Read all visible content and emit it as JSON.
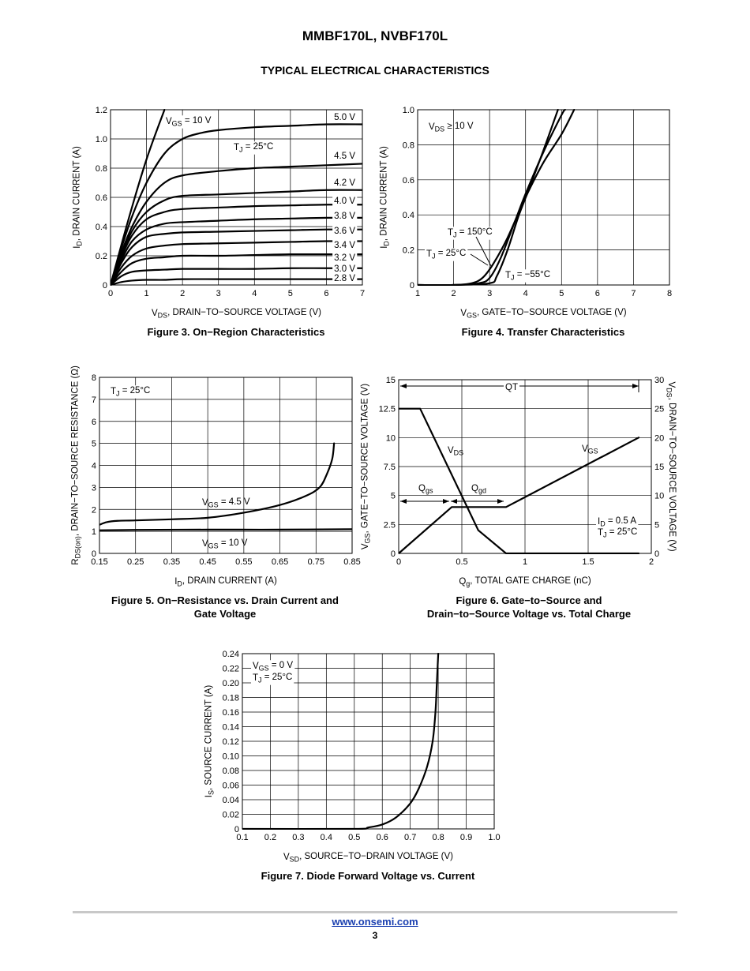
{
  "header": {
    "doc_title": "MMBF170L, NVBF170L",
    "section_title": "TYPICAL ELECTRICAL CHARACTERISTICS"
  },
  "footer": {
    "link": "www.onsemi.com",
    "page": "3"
  },
  "chart_data": [
    {
      "id": "fig3",
      "type": "line",
      "caption": "Figure 3. On−Region Characteristics",
      "xlabel": [
        "V",
        "DS",
        ", DRAIN−TO−SOURCE VOLTAGE (V)"
      ],
      "ylabel": [
        "I",
        "D",
        ", DRAIN CURRENT (A)"
      ],
      "xlim": [
        0,
        7
      ],
      "ylim": [
        0,
        1.2
      ],
      "xticks": [
        "0",
        "1",
        "2",
        "3",
        "4",
        "5",
        "6",
        "7"
      ],
      "yticks": [
        "0",
        "0.2",
        "0.4",
        "0.6",
        "0.8",
        "1.0",
        "1.2"
      ],
      "grid": true,
      "annotations": [
        [
          "V",
          "GS",
          " = 10 V"
        ],
        [
          "T",
          "J",
          " = 25°C"
        ]
      ],
      "series": [
        {
          "name": "10 V",
          "x": [
            0,
            0.5,
            1,
            1.5
          ],
          "y": [
            0,
            0.45,
            0.86,
            1.2
          ]
        },
        {
          "name": "5.0 V",
          "x": [
            0,
            0.3,
            0.6,
            1,
            1.5,
            2,
            2.5,
            3,
            4,
            5,
            6,
            7
          ],
          "y": [
            0,
            0.25,
            0.47,
            0.7,
            0.9,
            1.0,
            1.04,
            1.06,
            1.08,
            1.09,
            1.1,
            1.1
          ]
        },
        {
          "name": "4.5 V",
          "x": [
            0,
            0.3,
            0.6,
            1,
            1.5,
            2,
            3,
            4,
            5,
            6,
            7
          ],
          "y": [
            0,
            0.22,
            0.4,
            0.57,
            0.7,
            0.75,
            0.78,
            0.8,
            0.81,
            0.82,
            0.83
          ]
        },
        {
          "name": "4.2 V",
          "x": [
            0,
            0.3,
            0.6,
            1,
            1.5,
            2,
            3,
            4,
            5,
            6,
            7
          ],
          "y": [
            0,
            0.2,
            0.37,
            0.5,
            0.58,
            0.61,
            0.62,
            0.63,
            0.64,
            0.65,
            0.65
          ]
        },
        {
          "name": "4.0 V",
          "x": [
            0,
            0.3,
            0.6,
            1,
            1.5,
            2,
            3,
            4,
            5,
            6,
            7
          ],
          "y": [
            0,
            0.19,
            0.34,
            0.45,
            0.5,
            0.52,
            0.53,
            0.54,
            0.545,
            0.55,
            0.55
          ]
        },
        {
          "name": "3.8 V",
          "x": [
            0,
            0.3,
            0.6,
            1,
            1.5,
            2,
            3,
            4,
            5,
            6,
            7
          ],
          "y": [
            0,
            0.17,
            0.3,
            0.38,
            0.42,
            0.43,
            0.44,
            0.45,
            0.455,
            0.46,
            0.46
          ]
        },
        {
          "name": "3.6 V",
          "x": [
            0,
            0.3,
            0.6,
            1,
            1.5,
            2,
            3,
            4,
            5,
            6,
            7
          ],
          "y": [
            0,
            0.15,
            0.26,
            0.33,
            0.35,
            0.36,
            0.365,
            0.37,
            0.375,
            0.38,
            0.38
          ]
        },
        {
          "name": "3.4 V",
          "x": [
            0,
            0.3,
            0.6,
            1,
            1.5,
            2,
            3,
            4,
            5,
            6,
            7
          ],
          "y": [
            0,
            0.12,
            0.2,
            0.25,
            0.27,
            0.28,
            0.285,
            0.29,
            0.295,
            0.3,
            0.3
          ]
        },
        {
          "name": "3.2 V",
          "x": [
            0,
            0.3,
            0.6,
            1,
            1.5,
            2,
            3,
            4,
            5,
            6,
            7
          ],
          "y": [
            0,
            0.09,
            0.15,
            0.18,
            0.19,
            0.2,
            0.2,
            0.205,
            0.21,
            0.21,
            0.21
          ]
        },
        {
          "name": "3.0 V",
          "x": [
            0,
            0.3,
            0.6,
            1,
            1.5,
            2,
            3,
            4,
            5,
            6,
            7
          ],
          "y": [
            0,
            0.06,
            0.09,
            0.1,
            0.105,
            0.11,
            0.11,
            0.11,
            0.115,
            0.115,
            0.115
          ]
        },
        {
          "name": "2.8 V",
          "x": [
            0,
            0.3,
            0.6,
            1,
            1.5,
            2,
            3,
            4,
            5,
            6,
            7
          ],
          "y": [
            0,
            0.02,
            0.03,
            0.035,
            0.035,
            0.04,
            0.04,
            0.04,
            0.04,
            0.04,
            0.04
          ]
        }
      ]
    },
    {
      "id": "fig4",
      "type": "line",
      "caption": "Figure 4. Transfer Characteristics",
      "xlabel": [
        "V",
        "GS",
        ", GATE−TO−SOURCE VOLTAGE (V)"
      ],
      "ylabel": [
        "I",
        "D",
        ", DRAIN CURRENT (A)"
      ],
      "xlim": [
        1,
        8
      ],
      "ylim": [
        0,
        1.0
      ],
      "xticks": [
        "1",
        "2",
        "3",
        "4",
        "5",
        "6",
        "7",
        "8"
      ],
      "yticks": [
        "0",
        "0.2",
        "0.4",
        "0.6",
        "0.8",
        "1.0"
      ],
      "grid": true,
      "annotations": [
        [
          "V",
          "DS",
          " ≥ 10 V"
        ]
      ],
      "series": [
        {
          "name": "T_J = 150°C",
          "x": [
            1,
            2,
            2.5,
            2.8,
            3.1,
            3.5,
            4,
            4.5,
            5,
            5.35
          ],
          "y": [
            0,
            0,
            0.01,
            0.04,
            0.12,
            0.27,
            0.5,
            0.7,
            0.86,
            1.0
          ]
        },
        {
          "name": "T_J = 25°C",
          "x": [
            1,
            2,
            2.7,
            3,
            3.3,
            3.7,
            4,
            4.5,
            5,
            5.1
          ],
          "y": [
            0,
            0,
            0.01,
            0.04,
            0.15,
            0.36,
            0.52,
            0.76,
            0.97,
            1.0
          ]
        },
        {
          "name": "T_J = −55°C",
          "x": [
            1,
            2,
            3,
            3.2,
            3.5,
            3.8,
            4.1,
            4.5,
            4.9
          ],
          "y": [
            0,
            0,
            0.01,
            0.05,
            0.2,
            0.39,
            0.55,
            0.77,
            1.0
          ]
        }
      ]
    },
    {
      "id": "fig5",
      "type": "line",
      "caption": "Figure 5. On−Resistance vs. Drain Current and\nGate Voltage",
      "xlabel": [
        "I",
        "D",
        ", DRAIN CURRENT (A)"
      ],
      "ylabel": [
        "R",
        "DS(on)",
        ", DRAIN−TO−SOURCE RESISTANCE (Ω)"
      ],
      "xlim": [
        0.15,
        0.85
      ],
      "ylim": [
        0,
        8
      ],
      "xticks": [
        "0.15",
        "0.25",
        "0.35",
        "0.45",
        "0.55",
        "0.65",
        "0.75",
        "0.85"
      ],
      "yticks": [
        "0",
        "1",
        "2",
        "3",
        "4",
        "5",
        "6",
        "7",
        "8"
      ],
      "grid": true,
      "annotations": [
        [
          "T",
          "J",
          " = 25°C"
        ]
      ],
      "series": [
        {
          "name": "V_GS = 4.5 V",
          "x": [
            0.15,
            0.17,
            0.2,
            0.25,
            0.35,
            0.45,
            0.55,
            0.65,
            0.72,
            0.76,
            0.78,
            0.795,
            0.8
          ],
          "y": [
            1.3,
            1.42,
            1.48,
            1.5,
            1.55,
            1.62,
            1.85,
            2.2,
            2.6,
            3.0,
            3.6,
            4.3,
            5.0
          ]
        },
        {
          "name": "V_GS = 10 V",
          "x": [
            0.15,
            0.25,
            0.45,
            0.65,
            0.85
          ],
          "y": [
            1.05,
            1.07,
            1.08,
            1.08,
            1.1
          ]
        }
      ]
    },
    {
      "id": "fig6",
      "type": "line",
      "caption": "Figure 6. Gate−to−Source and\nDrain−to−Source Voltage vs. Total Charge",
      "xlabel": [
        "Q",
        "g",
        ", TOTAL GATE CHARGE (nC)"
      ],
      "ylabel": [
        "V",
        "GS",
        ", GATE−TO−SOURCE VOLTAGE (V)"
      ],
      "y2label": [
        "V",
        "DS",
        ", DRAIN−TO−SOURCE VOLTAGE (V)"
      ],
      "xlim": [
        0,
        2
      ],
      "ylim": [
        0,
        15
      ],
      "y2lim": [
        0,
        30
      ],
      "xticks": [
        "0",
        "0.5",
        "1",
        "1.5",
        "2"
      ],
      "yticks": [
        "0",
        "2.5",
        "5",
        "7.5",
        "10",
        "12.5",
        "15"
      ],
      "y2ticks": [
        "0",
        "5",
        "10",
        "15",
        "20",
        "25",
        "30"
      ],
      "grid": true,
      "annotations": [
        [
          "QT"
        ],
        [
          "Q",
          "gs",
          ""
        ],
        [
          "Q",
          "gd",
          ""
        ],
        [
          "V",
          "DS",
          ""
        ],
        [
          "V",
          "GS",
          ""
        ],
        [
          "I",
          "D",
          " = 0.5 A"
        ],
        [
          "T",
          "J",
          " = 25°C"
        ]
      ],
      "series": [
        {
          "name": "V_GS",
          "x": [
            0,
            0.42,
            0.85,
            1.9
          ],
          "y": [
            0,
            4,
            4,
            10
          ]
        },
        {
          "name": "V_DS",
          "axis": "right",
          "x": [
            0,
            0.17,
            0.63,
            0.85,
            1.9
          ],
          "y": [
            25,
            25,
            4,
            0,
            0
          ]
        }
      ]
    },
    {
      "id": "fig7",
      "type": "line",
      "caption": "Figure 7. Diode Forward Voltage vs. Current",
      "xlabel": [
        "V",
        "SD",
        ", SOURCE−TO−DRAIN VOLTAGE (V)"
      ],
      "ylabel": [
        "I",
        "S",
        ", SOURCE CURRENT (A)"
      ],
      "xlim": [
        0.1,
        1.0
      ],
      "ylim": [
        0,
        0.24
      ],
      "xticks": [
        "0.1",
        "0.2",
        "0.3",
        "0.4",
        "0.5",
        "0.6",
        "0.7",
        "0.8",
        "0.9",
        "1.0"
      ],
      "yticks": [
        "0",
        "0.02",
        "0.04",
        "0.06",
        "0.08",
        "0.10",
        "0.12",
        "0.14",
        "0.16",
        "0.18",
        "0.20",
        "0.22",
        "0.24"
      ],
      "grid": true,
      "annotations": [
        [
          "V",
          "GS",
          " = 0 V"
        ],
        [
          "T",
          "J",
          " = 25°C"
        ]
      ],
      "series": [
        {
          "name": "V_GS = 0 V",
          "x": [
            0.1,
            0.5,
            0.55,
            0.6,
            0.65,
            0.7,
            0.73,
            0.76,
            0.78,
            0.79,
            0.795,
            0.8
          ],
          "y": [
            0,
            0,
            0.002,
            0.006,
            0.016,
            0.035,
            0.055,
            0.085,
            0.12,
            0.16,
            0.2,
            0.24
          ]
        }
      ]
    }
  ]
}
